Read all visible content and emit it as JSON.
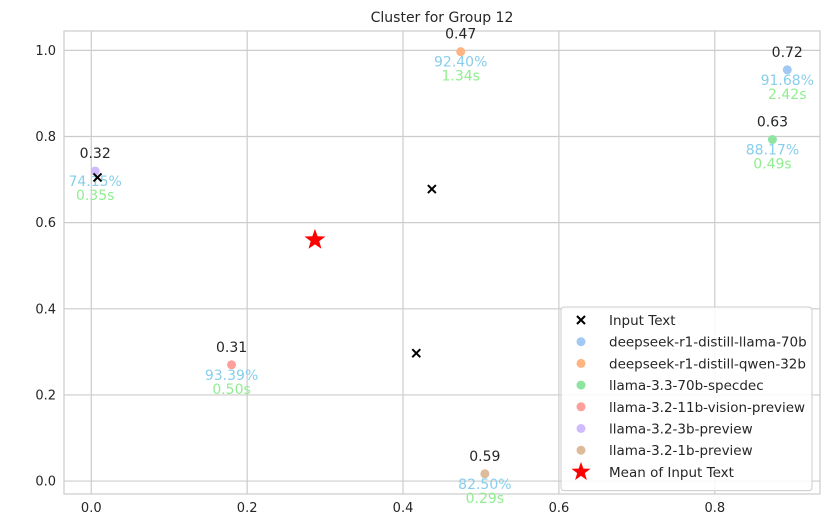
{
  "chart_data": {
    "type": "scatter",
    "title": "Cluster for Group 12",
    "xlabel": "",
    "ylabel": "",
    "xlim": [
      -0.035,
      0.935
    ],
    "ylim": [
      -0.03,
      1.045
    ],
    "xticks": [
      0.0,
      0.2,
      0.4,
      0.6,
      0.8
    ],
    "yticks": [
      0.0,
      0.2,
      0.4,
      0.6,
      0.8,
      1.0
    ],
    "grid": true,
    "legend_position": "lower-right",
    "input_points": {
      "name": "Input Text",
      "color": "#000000",
      "points": [
        {
          "x": 0.008,
          "y": 0.705
        },
        {
          "x": 0.437,
          "y": 0.678
        },
        {
          "x": 0.417,
          "y": 0.297
        }
      ]
    },
    "mean_point": {
      "name": "Mean of Input Text",
      "color": "#ff0000",
      "x": 0.287,
      "y": 0.56
    },
    "models": [
      {
        "name": "deepseek-r1-distill-llama-70b",
        "color": "#a1c9f4",
        "x": 0.893,
        "y": 0.955,
        "score": "0.72",
        "accuracy": "91.68%",
        "time": "2.42s"
      },
      {
        "name": "deepseek-r1-distill-qwen-32b",
        "color": "#ffb482",
        "x": 0.474,
        "y": 0.997,
        "score": "0.47",
        "accuracy": "92.40%",
        "time": "1.34s"
      },
      {
        "name": "llama-3.3-70b-specdec",
        "color": "#8de5a1",
        "x": 0.874,
        "y": 0.793,
        "score": "0.63",
        "accuracy": "88.17%",
        "time": "0.49s"
      },
      {
        "name": "llama-3.2-11b-vision-preview",
        "color": "#ff9f9b",
        "x": 0.18,
        "y": 0.27,
        "score": "0.31",
        "accuracy": "93.39%",
        "time": "0.50s"
      },
      {
        "name": "llama-3.2-3b-preview",
        "color": "#d0bbff",
        "x": 0.005,
        "y": 0.72,
        "score": "0.32",
        "accuracy": "74.15%",
        "time": "0.35s"
      },
      {
        "name": "llama-3.2-1b-preview",
        "color": "#debb9b",
        "x": 0.505,
        "y": 0.017,
        "score": "0.59",
        "accuracy": "82.50%",
        "time": "0.29s"
      }
    ],
    "label_colors": {
      "accuracy": "#87ceeb",
      "time": "#90ee90"
    }
  }
}
